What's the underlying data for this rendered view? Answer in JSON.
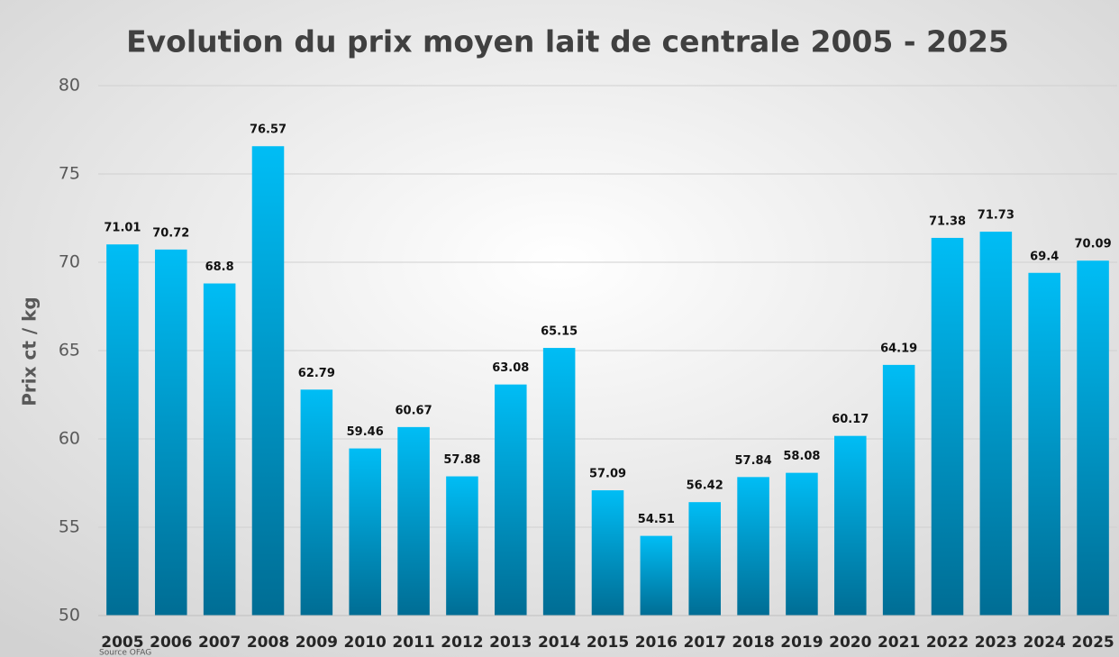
{
  "chart_data": {
    "type": "bar",
    "title": "Evolution du prix moyen lait de centrale 2005 - 2025",
    "y_label": "Prix  ct / kg",
    "source": "Source OFAG",
    "categories": [
      "2005",
      "2006",
      "2007",
      "2008",
      "2009",
      "2010",
      "2011",
      "2012",
      "2013",
      "2014",
      "2015",
      "2016",
      "2017",
      "2018",
      "2019",
      "2020",
      "2021",
      "2022",
      "2023",
      "2024",
      "2025"
    ],
    "values": [
      71.01,
      70.72,
      68.8,
      76.57,
      62.79,
      59.46,
      60.67,
      57.88,
      63.08,
      65.15,
      57.09,
      54.51,
      56.42,
      57.84,
      58.08,
      60.17,
      64.19,
      71.38,
      71.73,
      69.4,
      70.09
    ],
    "color": [
      "#00bdf5",
      "#006d94"
    ],
    "ylim": [
      50,
      80
    ],
    "yticks": [
      50,
      55,
      60,
      65,
      70,
      75,
      80
    ],
    "grid": true
  }
}
